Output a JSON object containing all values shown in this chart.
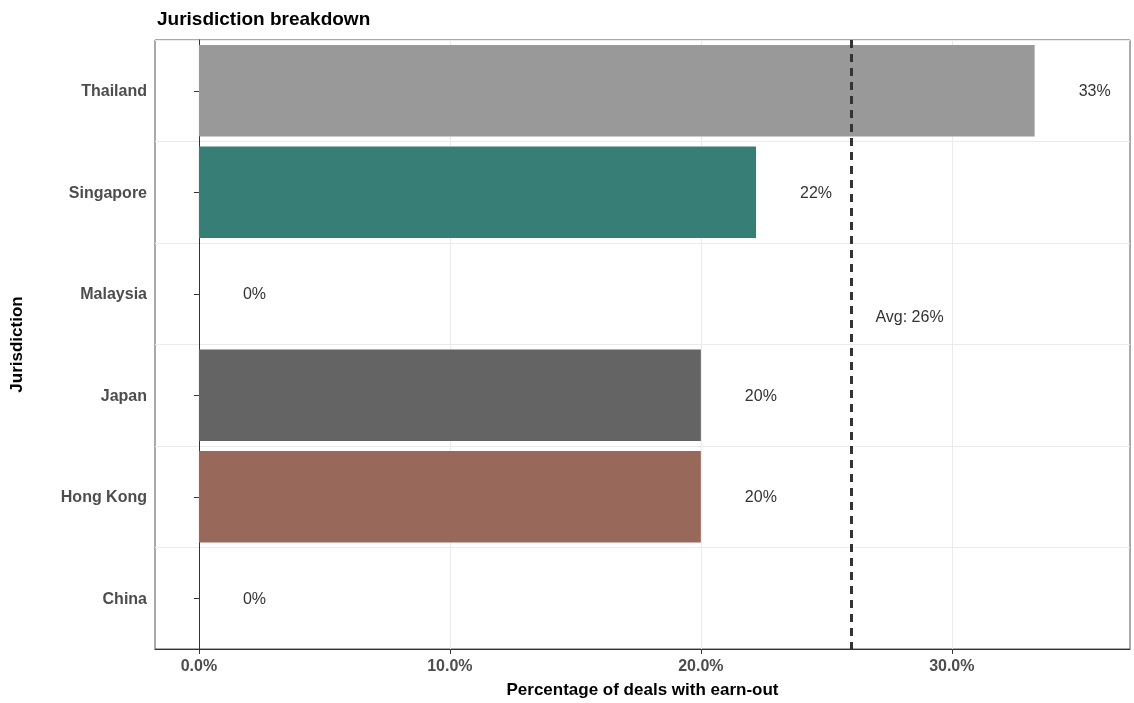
{
  "chart_data": {
    "type": "bar",
    "orientation": "horizontal",
    "title": "Jurisdiction breakdown",
    "xlabel": "Percentage of deals with earn-out",
    "ylabel": "Jurisdiction",
    "categories": [
      "Thailand",
      "Singapore",
      "Malaysia",
      "Japan",
      "Hong Kong",
      "China"
    ],
    "values": [
      33.3,
      22.2,
      0,
      20,
      20,
      0
    ],
    "colors": [
      "#999999",
      "#367e76",
      "#999999",
      "#646464",
      "#98695b",
      "#999999"
    ],
    "value_labels": [
      "33%",
      "22%",
      "0%",
      "20%",
      "20%",
      "0%"
    ],
    "xlim": [
      -1.75,
      37.1
    ],
    "xticks": [
      {
        "value": 0,
        "label": "0.0%"
      },
      {
        "value": 10,
        "label": "10.0%"
      },
      {
        "value": 20,
        "label": "20.0%"
      },
      {
        "value": 30,
        "label": "30.0%"
      }
    ],
    "grid": true,
    "ref_lines": [
      {
        "axis": "x",
        "value": 26,
        "label": "Avg: 26%",
        "color": "#333333",
        "line_style": "dashed"
      }
    ]
  }
}
